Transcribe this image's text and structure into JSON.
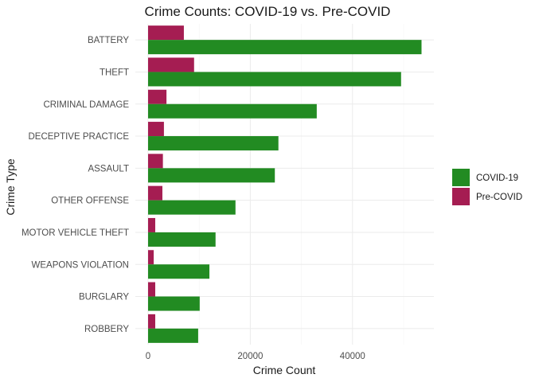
{
  "chart_data": {
    "type": "bar",
    "orientation": "horizontal",
    "title": "Crime Counts: COVID-19 vs. Pre-COVID",
    "xlabel": "Crime Count",
    "ylabel": "Crime Type",
    "categories": [
      "BATTERY",
      "THEFT",
      "CRIMINAL DAMAGE",
      "DECEPTIVE PRACTICE",
      "ASSAULT",
      "OTHER OFFENSE",
      "MOTOR VEHICLE THEFT",
      "WEAPONS VIOLATION",
      "BURGLARY",
      "ROBBERY"
    ],
    "series": [
      {
        "name": "COVID-19",
        "color": "#228b22",
        "values": [
          53500,
          49500,
          33000,
          25500,
          24800,
          17100,
          13200,
          12000,
          10100,
          9800
        ]
      },
      {
        "name": "Pre-COVID",
        "color": "#a51d52",
        "values": [
          7000,
          9000,
          3600,
          3100,
          2900,
          2800,
          1400,
          1100,
          1400,
          1400
        ]
      }
    ],
    "xlim": [
      0,
      56000
    ],
    "xticks": [
      0,
      20000,
      40000
    ],
    "xtick_labels": [
      "0",
      "20000",
      "40000"
    ],
    "grid": true,
    "legend_position": "right"
  }
}
